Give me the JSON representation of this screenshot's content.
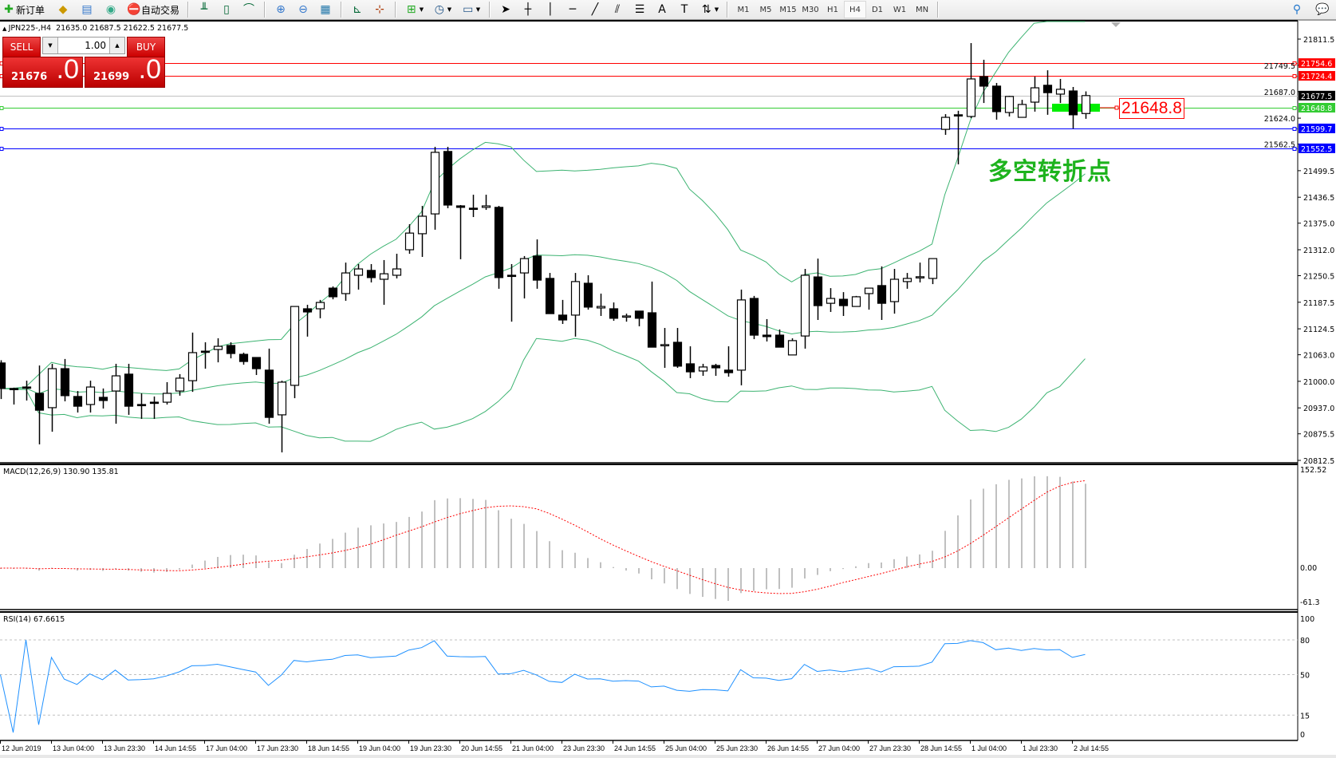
{
  "toolbar": {
    "new_order_label": "新订单",
    "auto_trading_label": "自动交易",
    "icons": [
      "new-order-icon",
      "market-watch-icon",
      "data-window-icon",
      "navigator-icon",
      "auto-trading-icon",
      "bar-chart-icon",
      "candlestick-icon",
      "line-chart-icon",
      "zoom-in-icon",
      "zoom-out-icon",
      "tile-windows-icon",
      "auto-scroll-icon",
      "chart-shift-icon",
      "new-chart-icon",
      "periods-icon",
      "templates-icon",
      "cursor-icon",
      "crosshair-icon",
      "vertical-line-icon",
      "horizontal-line-icon",
      "trendline-icon",
      "equidistant-channel-icon",
      "fibonacci-icon",
      "text-icon",
      "text-label-icon",
      "arrows-icon",
      "search-icon",
      "chat-icon"
    ],
    "timeframes": [
      "M1",
      "M5",
      "M15",
      "M30",
      "H1",
      "H4",
      "D1",
      "W1",
      "MN"
    ],
    "active_timeframe": "H4"
  },
  "header": {
    "symbol": "JPN225-,H4",
    "ohlc": "21635.0 21687.5 21622.5 21677.5"
  },
  "trade_panel": {
    "sell_label": "SELL",
    "buy_label": "BUY",
    "lot": "1.00",
    "sell_price_main": "21676",
    "sell_price_big": ".0",
    "buy_price_main": "21699",
    "buy_price_big": ".0"
  },
  "annotation": {
    "text": "多空转折点",
    "color": "#1db31d"
  },
  "price_label": {
    "text": "21648.8",
    "color": "#ff0000"
  },
  "horizontal_lines": [
    {
      "price": 21754.6,
      "label": "21754.6",
      "color": "#ff0000",
      "text_color": "#ffffff"
    },
    {
      "price": 21724.4,
      "label": "21724.4",
      "color": "#ff0000",
      "text_color": "#ffffff"
    },
    {
      "price": 21677.5,
      "label": "21677.5",
      "color": "#c0c0c0",
      "badge": "#000000",
      "text_color": "#ffffff"
    },
    {
      "price": 21648.8,
      "label": "21648.8",
      "color": "#33cc33",
      "text_color": "#ffffff"
    },
    {
      "price": 21599.7,
      "label": "21599.7",
      "color": "#0000ff",
      "text_color": "#ffffff"
    },
    {
      "price": 21552.5,
      "label": "21552.5",
      "color": "#0000ff",
      "text_color": "#ffffff"
    }
  ],
  "highlight_bar": {
    "price": 21648.8,
    "color": "#00ee00"
  },
  "price_axis": {
    "ticks": [
      "21811.5",
      "21749.5",
      "21687.0",
      "21624.0",
      "21562.5",
      "21499.5",
      "21436.5",
      "21375.0",
      "21312.0",
      "21250.5",
      "21187.5",
      "21124.5",
      "21063.0",
      "21000.0",
      "20937.0",
      "20875.5",
      "20812.5"
    ],
    "range": [
      20812.5,
      21811.5
    ]
  },
  "macd": {
    "label": "MACD(12,26,9) 130.90 135.81",
    "axis_labels": [
      "152.52",
      "0.00",
      "-61.3"
    ],
    "range": [
      -61.3,
      152.52
    ],
    "histogram_color": "#c0c0c0",
    "signal_color": "#ff0000"
  },
  "rsi": {
    "label": "RSI(14) 67.6615",
    "axis_labels": [
      "100",
      "80",
      "50",
      "15",
      "0"
    ],
    "levels": [
      80,
      50,
      15
    ],
    "color": "#1e90ff"
  },
  "bollinger": {
    "period": 20,
    "deviation": 2,
    "color": "#3cb371"
  },
  "time_axis": [
    "12 Jun 2019",
    "13 Jun 04:00",
    "13 Jun 23:30",
    "14 Jun 14:55",
    "17 Jun 04:00",
    "17 Jun 23:30",
    "18 Jun 14:55",
    "19 Jun 04:00",
    "19 Jun 23:30",
    "20 Jun 14:55",
    "21 Jun 04:00",
    "23 Jun 23:30",
    "24 Jun 14:55",
    "25 Jun 04:00",
    "25 Jun 23:30",
    "26 Jun 14:55",
    "27 Jun 04:00",
    "27 Jun 23:30",
    "28 Jun 14:55",
    "1 Jul 04:00",
    "1 Jul 23:30",
    "2 Jul 14:55"
  ],
  "chart_data": {
    "type": "candlestick",
    "ohlc_order": [
      "open",
      "high",
      "low",
      "close"
    ],
    "candles": [
      [
        21043.5,
        21050,
        20958,
        20983
      ],
      [
        20983,
        20985,
        20945,
        20982
      ],
      [
        20986.5,
        21001.5,
        20954.5,
        20986
      ],
      [
        20971.5,
        21037.5,
        20850.5,
        20931.5
      ],
      [
        20937.5,
        21041.5,
        20880.5,
        21030
      ],
      [
        21030,
        21053,
        20952.5,
        20966
      ],
      [
        20964,
        20977,
        20926,
        20941
      ],
      [
        20945,
        21001.5,
        20926,
        20986.5
      ],
      [
        20962,
        20983,
        20935.5,
        20954.5
      ],
      [
        20977,
        21041.5,
        20899.5,
        21013
      ],
      [
        21017,
        21041.5,
        20920.5,
        20941
      ],
      [
        20945,
        20971.5,
        20911,
        20944
      ],
      [
        20950.5,
        20964,
        20911,
        20950
      ],
      [
        20950.5,
        20998,
        20945,
        20971.5
      ],
      [
        20977,
        21017,
        20966,
        21007.5
      ],
      [
        21001.5,
        21115.5,
        20975,
        21068
      ],
      [
        21071.5,
        21092.5,
        21030,
        21071
      ],
      [
        21075.5,
        21102,
        21045,
        21083
      ],
      [
        21085,
        21092.5,
        21054.5,
        21066
      ],
      [
        21064,
        21068,
        21039.5,
        21047
      ],
      [
        21056.5,
        21056.5,
        21015,
        21030
      ],
      [
        21026.5,
        21077.5,
        20899.5,
        20914.5
      ],
      [
        20920.5,
        21001.5,
        20831.5,
        20998
      ],
      [
        20990.5,
        21177.5,
        20960,
        21177.5
      ],
      [
        21172,
        21181.5,
        21106,
        21164.5
      ],
      [
        21172,
        21193,
        21149.5,
        21187
      ],
      [
        21221,
        21225,
        21194.5,
        21200.5
      ],
      [
        21208,
        21281.5,
        21191,
        21257
      ],
      [
        21251.5,
        21278,
        21217.5,
        21266.5
      ],
      [
        21263,
        21278,
        21234.5,
        21246
      ],
      [
        21242,
        21287.5,
        21181.5,
        21255
      ],
      [
        21251.5,
        21302.5,
        21244,
        21266.5
      ],
      [
        21312,
        21372.5,
        21302.5,
        21351.5
      ],
      [
        21350,
        21416,
        21295,
        21391.5
      ],
      [
        21397,
        21556,
        21359.5,
        21543
      ],
      [
        21545,
        21556,
        21410.5,
        21418
      ],
      [
        21416,
        21418,
        21289.5,
        21412.5
      ],
      [
        21410.5,
        21442.5,
        21389.5,
        21410
      ],
      [
        21412.5,
        21442.5,
        21406.5,
        21416
      ],
      [
        21412.5,
        21416,
        21219.5,
        21246
      ],
      [
        21251.5,
        21278,
        21141.5,
        21251
      ],
      [
        21257,
        21297,
        21196.5,
        21291
      ],
      [
        21297,
        21336.5,
        21219.5,
        21240
      ],
      [
        21244,
        21257,
        21160.5,
        21160.5
      ],
      [
        21157,
        21193,
        21136,
        21145.5
      ],
      [
        21157,
        21257,
        21106,
        21236.5
      ],
      [
        21232.5,
        21251.5,
        21170,
        21176
      ],
      [
        21174,
        21208,
        21155,
        21177.5
      ],
      [
        21172,
        21187,
        21143.5,
        21149.5
      ],
      [
        21155,
        21160.5,
        21141.5,
        21155
      ],
      [
        21166.5,
        21166.5,
        21130.5,
        21149.5
      ],
      [
        21162.5,
        21236.5,
        21081,
        21081
      ],
      [
        21087,
        21126.5,
        21032,
        21087
      ],
      [
        21092.5,
        21126.5,
        21032,
        21036
      ],
      [
        21041.5,
        21083,
        21007.5,
        21022.5
      ],
      [
        21024.5,
        21041.5,
        21013,
        21034
      ],
      [
        21037.5,
        21041.5,
        21013,
        21032
      ],
      [
        21026.5,
        21083,
        21011,
        21020.5
      ],
      [
        21026.5,
        21217.5,
        20990.5,
        21193
      ],
      [
        21196.5,
        21202.5,
        21100,
        21109.5
      ],
      [
        21109.5,
        21147.5,
        21094.5,
        21106
      ],
      [
        21109.5,
        21123,
        21081,
        21081
      ],
      [
        21062.5,
        21102,
        21062.5,
        21096.5
      ],
      [
        21107.5,
        21266.5,
        21077.5,
        21251.5
      ],
      [
        21247.5,
        21291,
        21145.5,
        21179.5
      ],
      [
        21185,
        21221,
        21164.5,
        21196.5
      ],
      [
        21194.5,
        21211.5,
        21155,
        21179.5
      ],
      [
        21177.5,
        21202.5,
        21177.5,
        21200.5
      ],
      [
        21208,
        21221,
        21170,
        21221
      ],
      [
        21227,
        21272.5,
        21145.5,
        21185
      ],
      [
        21189,
        21266.5,
        21160.5,
        21242
      ],
      [
        21236.5,
        21257,
        21219.5,
        21244
      ],
      [
        21247.5,
        21281.5,
        21234.5,
        21248
      ],
      [
        21244,
        21291,
        21230.5,
        21291
      ],
      [
        21597.5,
        21633.5,
        21584.5,
        21626
      ],
      [
        21632,
        21641.5,
        21514.5,
        21631.5
      ],
      [
        21628,
        21802,
        21624,
        21717
      ],
      [
        21722.5,
        21762.5,
        21660,
        21700
      ],
      [
        21700,
        21707.5,
        21620.5,
        21639.5
      ],
      [
        21637.5,
        21677,
        21628,
        21675.5
      ],
      [
        21626,
        21667.5,
        21626,
        21656.5
      ],
      [
        21662,
        21722.5,
        21639.5,
        21696
      ],
      [
        21702,
        21737.5,
        21632,
        21684.5
      ],
      [
        21681,
        21717,
        21660,
        21692.5
      ],
      [
        21688.5,
        21698,
        21599.5,
        21632
      ],
      [
        21635.0,
        21687.5,
        21622.5,
        21677.5
      ]
    ]
  }
}
